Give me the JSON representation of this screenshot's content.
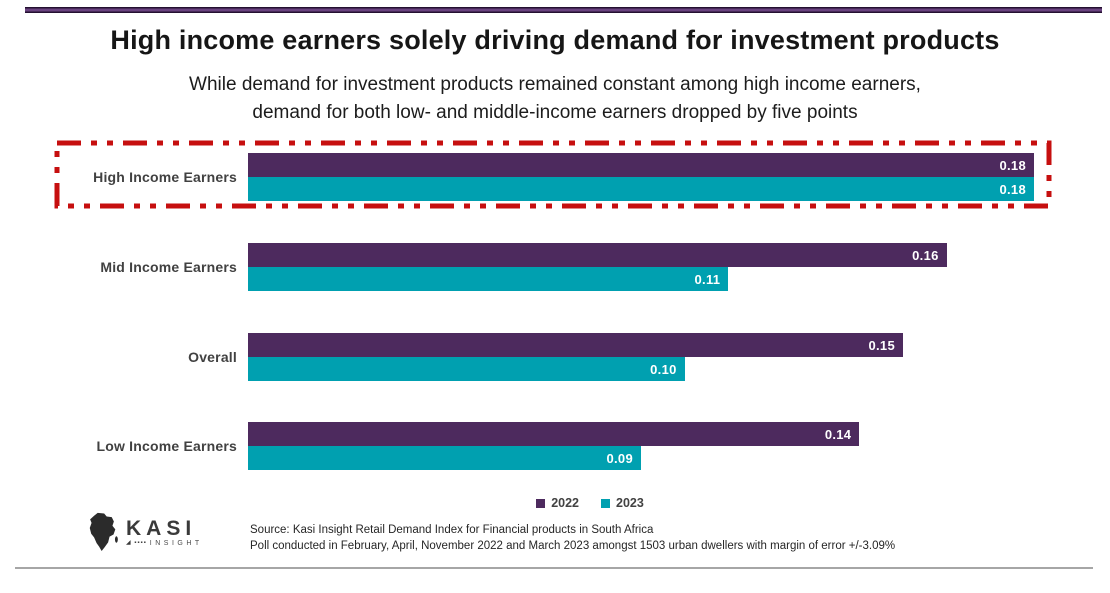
{
  "header": {
    "title": "High income earners solely driving demand for investment products",
    "subtitle_line1": "While demand for investment products remained constant among high income earners,",
    "subtitle_line2": "demand for both low- and middle-income earners dropped by five points"
  },
  "chart_data": {
    "type": "bar",
    "orientation": "horizontal",
    "categories": [
      "High Income Earners",
      "Mid Income Earners",
      "Overall",
      "Low Income Earners"
    ],
    "series": [
      {
        "name": "2022",
        "color": "#4d2a5e",
        "values": [
          0.18,
          0.16,
          0.15,
          0.14
        ],
        "labels": [
          "0.18",
          "0.16",
          "0.15",
          "0.14"
        ]
      },
      {
        "name": "2023",
        "color": "#00a0b0",
        "values": [
          0.18,
          0.11,
          0.1,
          0.09
        ],
        "labels": [
          "0.18",
          "0.11",
          "0.10",
          "0.09"
        ]
      }
    ],
    "xlim": [
      0,
      0.18
    ],
    "grid": false,
    "legend_position": "bottom-center",
    "value_label_color": "#ffffff",
    "highlight": {
      "category": "High Income Earners",
      "style": "red dashed box",
      "color": "#c60f0f"
    }
  },
  "legend": {
    "items": [
      {
        "label": "2022",
        "color": "#4d2a5e"
      },
      {
        "label": "2023",
        "color": "#00a0b0"
      }
    ]
  },
  "footer": {
    "source_line1": "Source: Kasi Insight Retail Demand Index for Financial products in South Africa",
    "source_line2": "Poll conducted in February, April, November 2022 and March 2023 amongst 1503 urban dwellers with margin of error +/-3.09%",
    "logo_text": "KASI",
    "logo_subtext": "INSIGHT"
  },
  "colors": {
    "top_rule": "#3a1f4c",
    "bottom_rule": "#a6a6a6",
    "series_2022": "#4d2a5e",
    "series_2023": "#00a0b0",
    "highlight_red": "#c60f0f",
    "title_text": "#161616",
    "category_text": "#414141"
  }
}
